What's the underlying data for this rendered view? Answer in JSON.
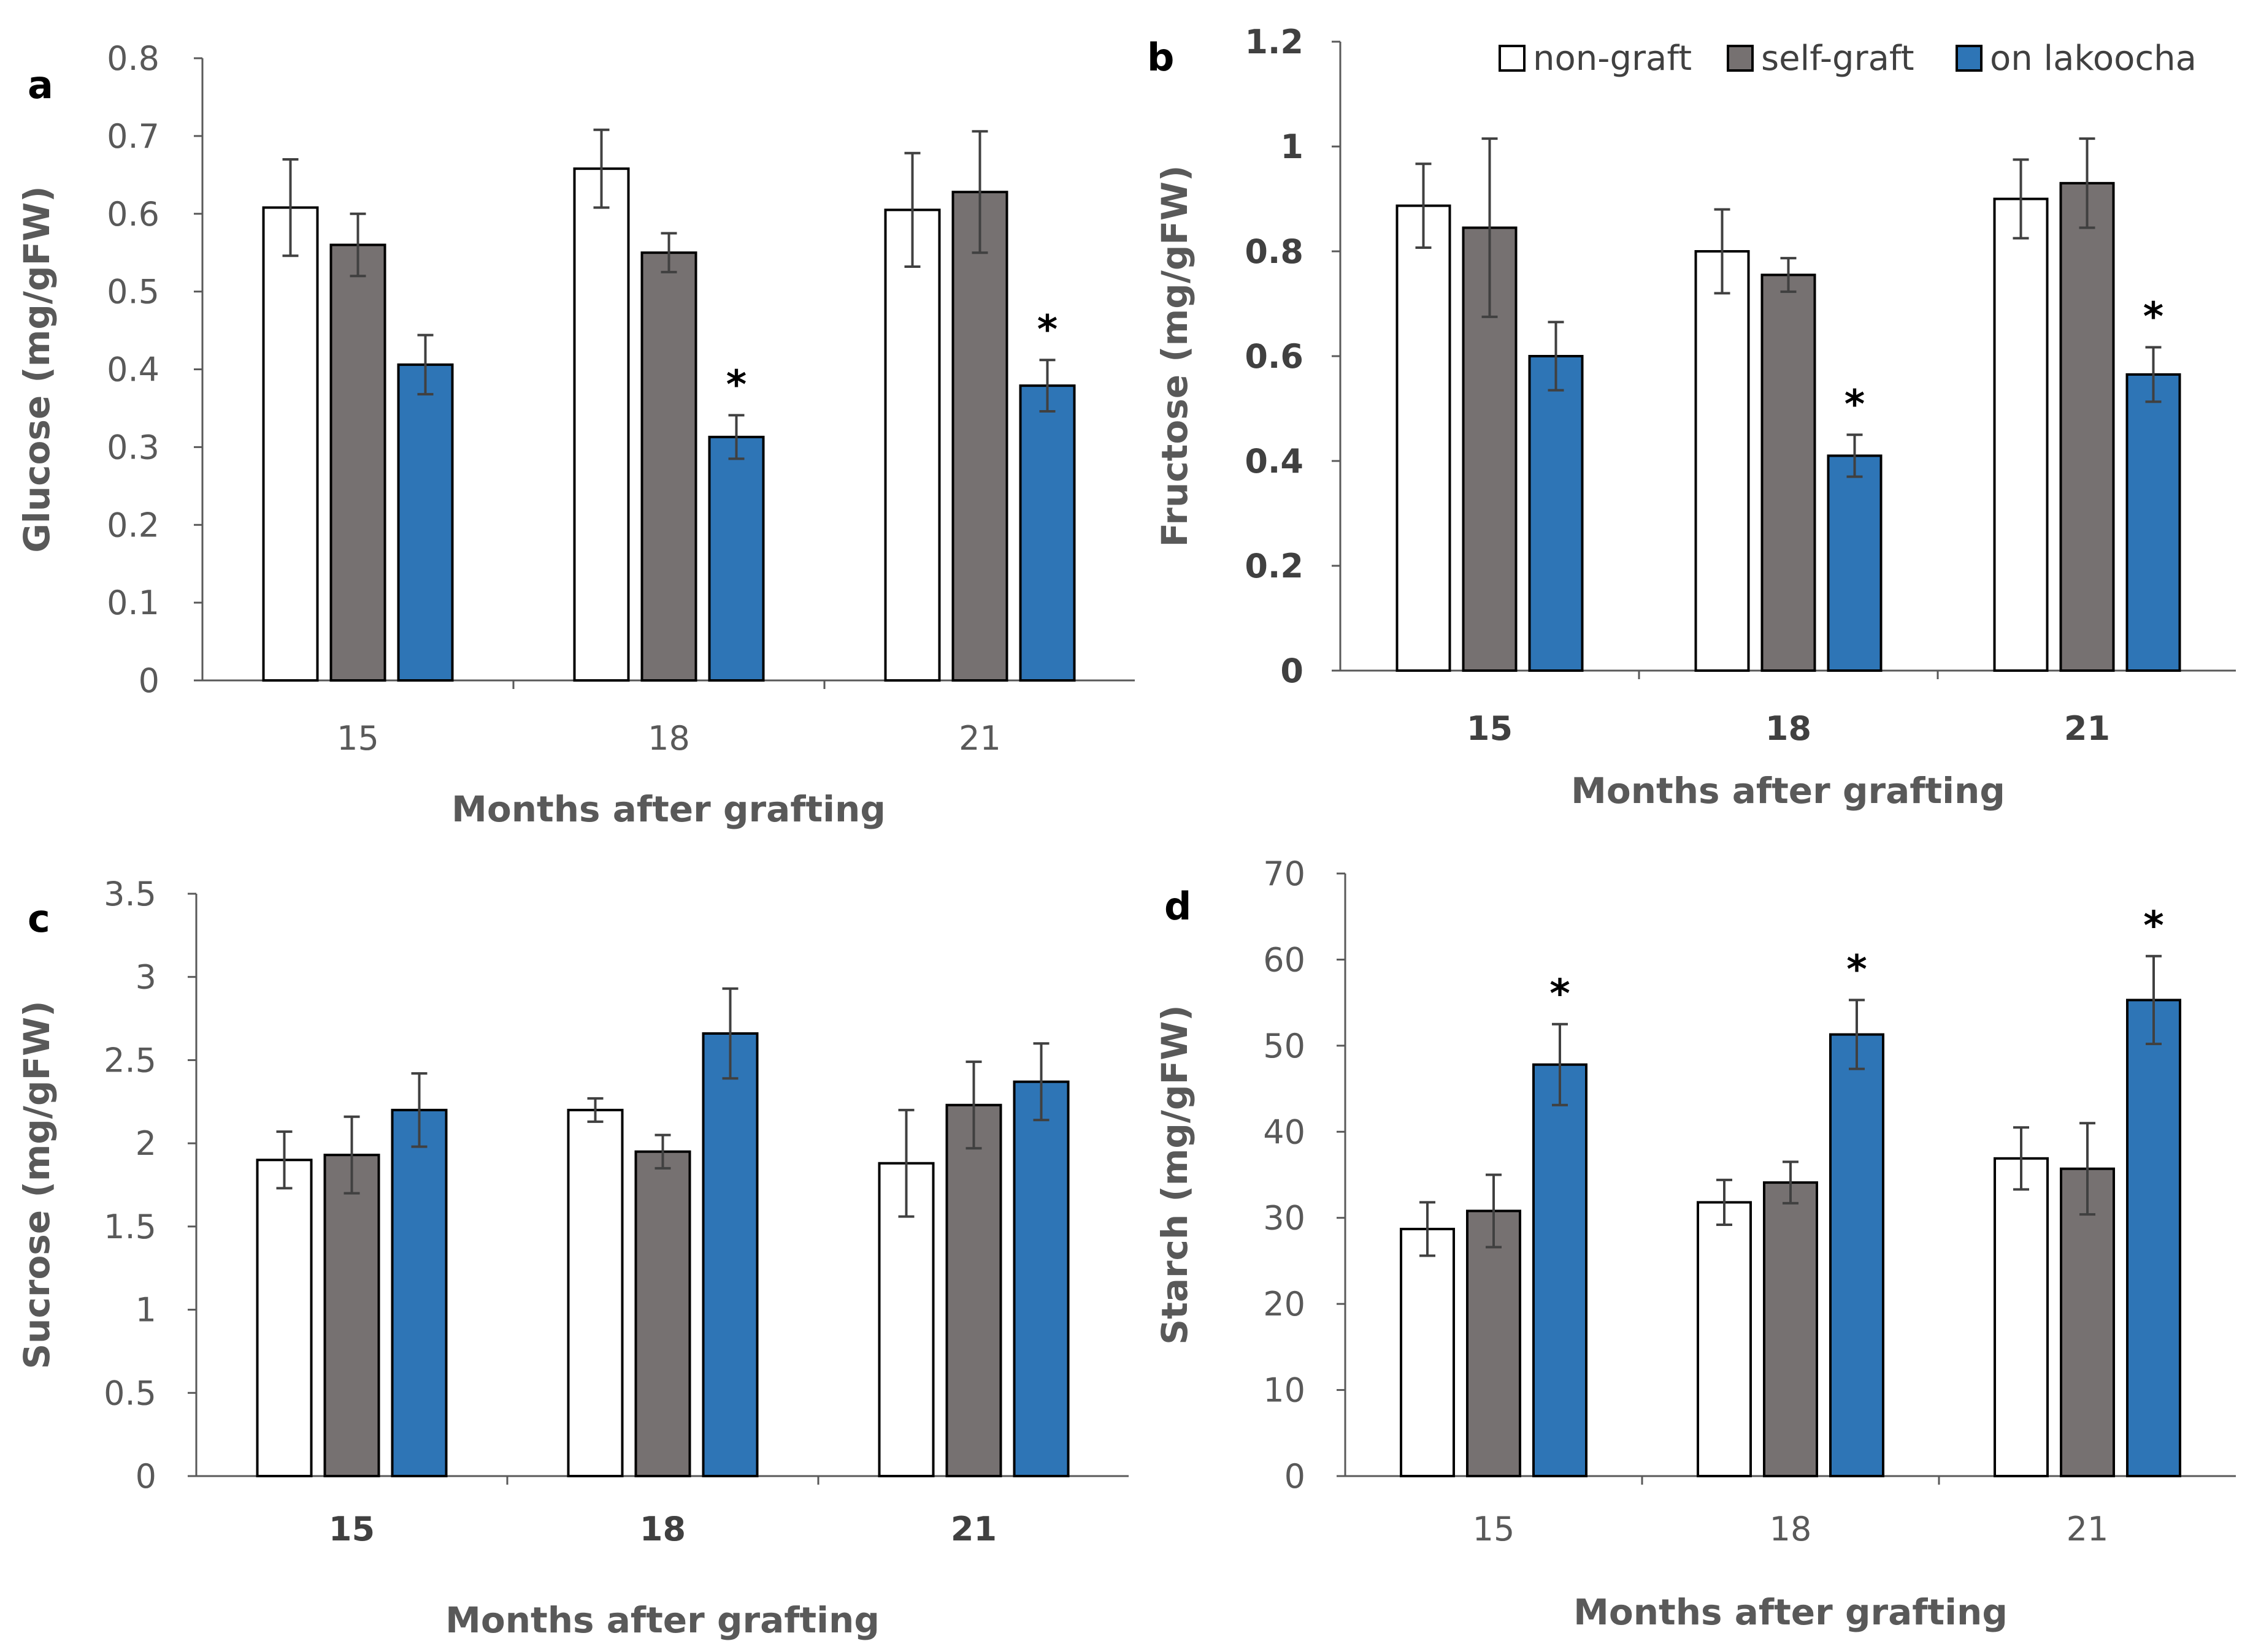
{
  "legend": [
    {
      "label": "non-graft",
      "color": "#ffffff"
    },
    {
      "label": "self-graft",
      "color": "#767171"
    },
    {
      "label": "on lakoocha",
      "color": "#2e75b6"
    }
  ],
  "chart_data": [
    {
      "type": "bar",
      "panel": "a",
      "ylabel": "Glucose (mg/gFW)",
      "xlabel": "Months after grafting",
      "categories": [
        "15",
        "18",
        "21"
      ],
      "ylim": [
        0,
        0.8
      ],
      "yticks": [
        0,
        0.1,
        0.2,
        0.3,
        0.4,
        0.5,
        0.6,
        0.7,
        0.8
      ],
      "ytick_labels": [
        "0",
        "0.1",
        "0.2",
        "0.3",
        "0.4",
        "0.5",
        "0.6",
        "0.7",
        "0.8"
      ],
      "series": [
        {
          "name": "non-graft",
          "values": [
            0.608,
            0.658,
            0.605
          ],
          "errors": [
            0.062,
            0.05,
            0.073
          ]
        },
        {
          "name": "self-graft",
          "values": [
            0.56,
            0.55,
            0.628
          ],
          "errors": [
            0.04,
            0.025,
            0.078
          ]
        },
        {
          "name": "on lakoocha",
          "values": [
            0.406,
            0.313,
            0.379
          ],
          "errors": [
            0.038,
            0.028,
            0.033
          ]
        }
      ],
      "significance": [
        "",
        "*",
        "*"
      ]
    },
    {
      "type": "bar",
      "panel": "b",
      "ylabel": "Fructose (mg/gFW)",
      "xlabel": "Months after grafting",
      "categories": [
        "15",
        "18",
        "21"
      ],
      "ylim": [
        0,
        1.2
      ],
      "yticks": [
        0,
        0.2,
        0.4,
        0.6,
        0.8,
        1.0,
        1.2
      ],
      "ytick_labels": [
        "0",
        "0.2",
        "0.4",
        "0.6",
        "0.8",
        "1",
        "1.2"
      ],
      "series": [
        {
          "name": "non-graft",
          "values": [
            0.887,
            0.8,
            0.9
          ],
          "errors": [
            0.08,
            0.08,
            0.075
          ]
        },
        {
          "name": "self-graft",
          "values": [
            0.845,
            0.755,
            0.93
          ],
          "errors": [
            0.17,
            0.032,
            0.085
          ]
        },
        {
          "name": "on lakoocha",
          "values": [
            0.6,
            0.41,
            0.565
          ],
          "errors": [
            0.065,
            0.04,
            0.052
          ]
        }
      ],
      "significance": [
        "",
        "*",
        "*"
      ]
    },
    {
      "type": "bar",
      "panel": "c",
      "ylabel": "Sucrose (mg/gFW)",
      "xlabel": "Months after grafting",
      "categories": [
        "15",
        "18",
        "21"
      ],
      "ylim": [
        0,
        3.5
      ],
      "yticks": [
        0,
        0.5,
        1.0,
        1.5,
        2.0,
        2.5,
        3.0,
        3.5
      ],
      "ytick_labels": [
        "0",
        "0.5",
        "1",
        "1.5",
        "2",
        "2.5",
        "3",
        "3.5"
      ],
      "series": [
        {
          "name": "non-graft",
          "values": [
            1.9,
            2.2,
            1.88
          ],
          "errors": [
            0.17,
            0.07,
            0.32
          ]
        },
        {
          "name": "self-graft",
          "values": [
            1.93,
            1.95,
            2.23
          ],
          "errors": [
            0.23,
            0.1,
            0.26
          ]
        },
        {
          "name": "on lakoocha",
          "values": [
            2.2,
            2.66,
            2.37
          ],
          "errors": [
            0.22,
            0.27,
            0.23
          ]
        }
      ],
      "significance": [
        "",
        "",
        ""
      ]
    },
    {
      "type": "bar",
      "panel": "d",
      "ylabel": "Starch (mg/gFW)",
      "xlabel": "Months after grafting",
      "categories": [
        "15",
        "18",
        "21"
      ],
      "ylim": [
        0,
        70
      ],
      "yticks": [
        0,
        10,
        20,
        30,
        40,
        50,
        60,
        70
      ],
      "ytick_labels": [
        "0",
        "10",
        "20",
        "30",
        "40",
        "50",
        "60",
        "70"
      ],
      "series": [
        {
          "name": "non-graft",
          "values": [
            28.7,
            31.8,
            36.9
          ],
          "errors": [
            3.1,
            2.6,
            3.6
          ]
        },
        {
          "name": "self-graft",
          "values": [
            30.8,
            34.1,
            35.7
          ],
          "errors": [
            4.2,
            2.4,
            5.3
          ]
        },
        {
          "name": "on lakoocha",
          "values": [
            47.8,
            51.3,
            55.3
          ],
          "errors": [
            4.7,
            4.0,
            5.1
          ]
        }
      ],
      "significance": [
        "*",
        "*",
        "*"
      ]
    }
  ]
}
